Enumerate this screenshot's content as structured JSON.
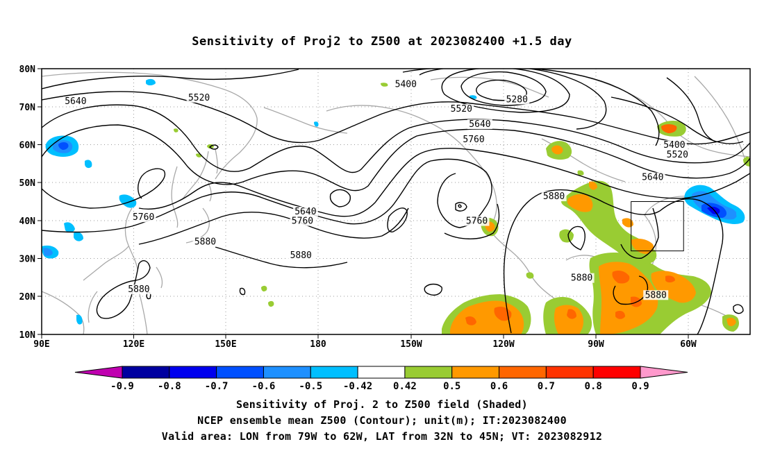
{
  "title": "Sensitivity of Proj2 to Z500 at 2023082400 +1.5 day",
  "lat_labels": [
    "80N",
    "70N",
    "60N",
    "50N",
    "40N",
    "30N",
    "20N",
    "10N"
  ],
  "lon_labels": [
    "90E",
    "120E",
    "150E",
    "180",
    "150W",
    "120W",
    "90W",
    "60W"
  ],
  "contour_labels": [
    {
      "text": "5400",
      "lon": -152,
      "lat": 75.5
    },
    {
      "text": "5280",
      "lon": -116,
      "lat": 71.5
    },
    {
      "text": "5520",
      "lon": 141,
      "lat": 72
    },
    {
      "text": "5520",
      "lon": -134,
      "lat": 69
    },
    {
      "text": "5640",
      "lon": 101,
      "lat": 71
    },
    {
      "text": "5640",
      "lon": -128,
      "lat": 65
    },
    {
      "text": "5760",
      "lon": -130,
      "lat": 61
    },
    {
      "text": "5400",
      "lon": -65,
      "lat": 59.5
    },
    {
      "text": "5520",
      "lon": -64,
      "lat": 57
    },
    {
      "text": "5640",
      "lon": -72,
      "lat": 51
    },
    {
      "text": "5880",
      "lon": -104,
      "lat": 46
    },
    {
      "text": "5640",
      "lon": 175.5,
      "lat": 42
    },
    {
      "text": "5760",
      "lon": 174.5,
      "lat": 39.5
    },
    {
      "text": "5760",
      "lon": 123,
      "lat": 40.5
    },
    {
      "text": "5760",
      "lon": -129,
      "lat": 39.5
    },
    {
      "text": "5880",
      "lon": 143,
      "lat": 34
    },
    {
      "text": "5880",
      "lon": 174,
      "lat": 30.5
    },
    {
      "text": "5880",
      "lon": 121.5,
      "lat": 21.5
    },
    {
      "text": "5880",
      "lon": -95,
      "lat": 24.5
    },
    {
      "text": "5880",
      "lon": -71,
      "lat": 20
    }
  ],
  "colorbar": {
    "colors": [
      "#c000b0",
      "#0000a0",
      "#0000ee",
      "#0050ff",
      "#1e90ff",
      "#00bfff",
      "#ffffff",
      "#99cc33",
      "#ff9900",
      "#ff6600",
      "#ff3300",
      "#ff0000",
      "#ff99cc"
    ],
    "labels": [
      "-0.9",
      "-0.8",
      "-0.7",
      "-0.6",
      "-0.5",
      "-0.42",
      "0.42",
      "0.5",
      "0.6",
      "0.7",
      "0.8",
      "0.9"
    ]
  },
  "valid_box": {
    "lon_min": -79,
    "lon_max": -62,
    "lat_min": 32,
    "lat_max": 45
  },
  "captions": {
    "line1": "Sensitivity of Proj. 2 to Z500 field (Shaded)",
    "line2": "NCEP ensemble mean Z500 (Contour); unit(m); IT:2023082400",
    "line3": "Valid area: LON from 79W to 62W, LAT from 32N to 45N; VT: 2023082912"
  }
}
